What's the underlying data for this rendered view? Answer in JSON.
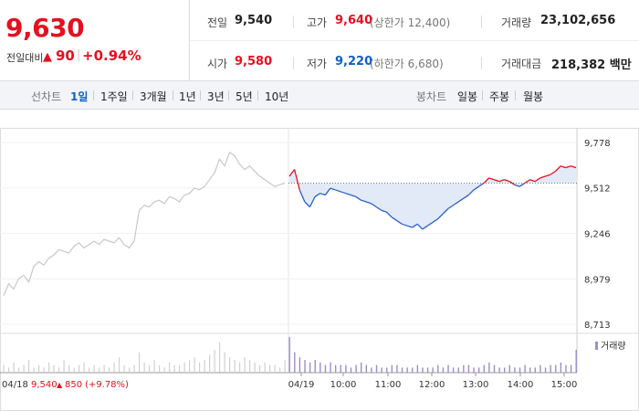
{
  "header": {
    "price": "9,630",
    "change_label": "전일대비",
    "change_arrow": "▲",
    "change_value": "90",
    "change_pct": "+0.94%"
  },
  "stats": {
    "prev_close_label": "전일",
    "prev_close": "9,540",
    "open_label": "시가",
    "open": "9,580",
    "high_label": "고가",
    "high": "9,640",
    "upper_limit": "(상한가 12,400)",
    "low_label": "저가",
    "low": "9,220",
    "lower_limit": "(하한가 6,680)",
    "volume_label": "거래량",
    "volume": "23,102,656",
    "amount_label": "거래대금",
    "amount": "218,382 백만"
  },
  "periods": {
    "line_label": "선차트",
    "line_items": [
      "1일",
      "1주일",
      "3개월",
      "1년",
      "3년",
      "5년",
      "10년"
    ],
    "line_active": "1일",
    "candle_label": "봉차트",
    "candle_items": [
      "일봉",
      "주봉",
      "월봉"
    ]
  },
  "chart_data": {
    "type": "line",
    "title": "",
    "xlabel": "",
    "ylabel": "",
    "y_ticks": [
      "9,778",
      "9,512",
      "9,246",
      "8,979",
      "8,713"
    ],
    "ylim": [
      8713,
      9778
    ],
    "reference_price": 9540,
    "x_ticks": [
      "04/19",
      "10:00",
      "11:00",
      "12:00",
      "13:00",
      "14:00",
      "15:00"
    ],
    "prev_day_label": "04/18",
    "prev_day_summary": {
      "close": "9,540",
      "arrow": "▲",
      "change": "850",
      "pct": "(+9.78%)"
    },
    "volume_label": "거래량",
    "series": [
      {
        "key": "prev_day",
        "color": "#c8c8c8",
        "values": [
          8880,
          8950,
          8920,
          8980,
          9000,
          8960,
          9050,
          9080,
          9060,
          9100,
          9120,
          9150,
          9140,
          9130,
          9170,
          9190,
          9160,
          9180,
          9200,
          9180,
          9210,
          9200,
          9190,
          9220,
          9180,
          9160,
          9200,
          9380,
          9410,
          9400,
          9430,
          9440,
          9420,
          9460,
          9450,
          9430,
          9470,
          9480,
          9510,
          9500,
          9520,
          9560,
          9600,
          9680,
          9640,
          9720,
          9700,
          9650,
          9620,
          9640,
          9610,
          9580,
          9560,
          9540,
          9520,
          9530,
          9540
        ]
      },
      {
        "key": "today",
        "color_above": "#e5101e",
        "color_below": "#2a5fc7",
        "values": [
          9580,
          9620,
          9500,
          9430,
          9400,
          9460,
          9480,
          9470,
          9510,
          9500,
          9490,
          9480,
          9470,
          9460,
          9440,
          9430,
          9420,
          9400,
          9380,
          9370,
          9340,
          9320,
          9300,
          9290,
          9280,
          9300,
          9270,
          9290,
          9310,
          9330,
          9360,
          9390,
          9410,
          9430,
          9450,
          9470,
          9500,
          9520,
          9540,
          9570,
          9560,
          9550,
          9560,
          9550,
          9530,
          9520,
          9540,
          9560,
          9550,
          9570,
          9580,
          9590,
          9610,
          9640,
          9630,
          9640,
          9630
        ]
      }
    ],
    "volume": {
      "prev_day": [
        3,
        2,
        4,
        2,
        3,
        5,
        2,
        3,
        2,
        4,
        3,
        2,
        5,
        3,
        2,
        3,
        4,
        2,
        3,
        2,
        3,
        2,
        4,
        6,
        3,
        2,
        3,
        8,
        4,
        3,
        5,
        3,
        2,
        4,
        3,
        3,
        4,
        5,
        6,
        4,
        5,
        7,
        9,
        12,
        8,
        6,
        5,
        4,
        6,
        5,
        4,
        3,
        4,
        3,
        3,
        2,
        5
      ],
      "today": [
        14,
        8,
        6,
        5,
        4,
        5,
        4,
        3,
        4,
        3,
        3,
        3,
        2,
        3,
        4,
        3,
        2,
        3,
        2,
        2,
        3,
        3,
        2,
        2,
        2,
        3,
        2,
        2,
        2,
        3,
        2,
        3,
        2,
        2,
        3,
        3,
        2,
        2,
        3,
        4,
        3,
        2,
        2,
        3,
        2,
        2,
        3,
        2,
        2,
        3,
        2,
        3,
        3,
        4,
        3,
        3,
        9
      ]
    }
  }
}
